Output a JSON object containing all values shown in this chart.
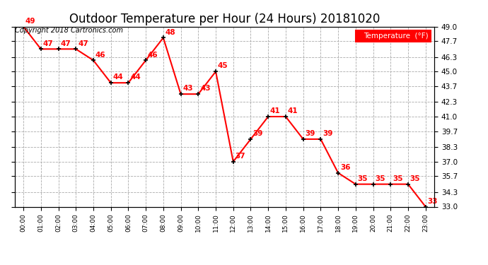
{
  "title": "Outdoor Temperature per Hour (24 Hours) 20181020",
  "copyright_text": "Copyright 2018 Cartronics.com",
  "legend_label": "Temperature  (°F)",
  "hours": [
    "00:00",
    "01:00",
    "02:00",
    "03:00",
    "04:00",
    "05:00",
    "06:00",
    "07:00",
    "08:00",
    "09:00",
    "10:00",
    "11:00",
    "12:00",
    "13:00",
    "14:00",
    "15:00",
    "16:00",
    "17:00",
    "18:00",
    "19:00",
    "20:00",
    "21:00",
    "22:00",
    "23:00"
  ],
  "temps": [
    49,
    47,
    47,
    47,
    46,
    44,
    44,
    46,
    48,
    43,
    43,
    45,
    37,
    39,
    41,
    41,
    39,
    39,
    36,
    35,
    35,
    35,
    35,
    33
  ],
  "line_color": "red",
  "marker_color": "black",
  "label_color": "red",
  "background_color": "white",
  "grid_color": "#aaaaaa",
  "ylim_min": 33.0,
  "ylim_max": 49.0,
  "yticks": [
    33.0,
    34.3,
    35.7,
    37.0,
    38.3,
    39.7,
    41.0,
    42.3,
    43.7,
    45.0,
    46.3,
    47.7,
    49.0
  ],
  "title_fontsize": 12,
  "label_fontsize": 7.5,
  "copyright_fontsize": 7,
  "xtick_fontsize": 6.5,
  "ytick_fontsize": 7.5
}
